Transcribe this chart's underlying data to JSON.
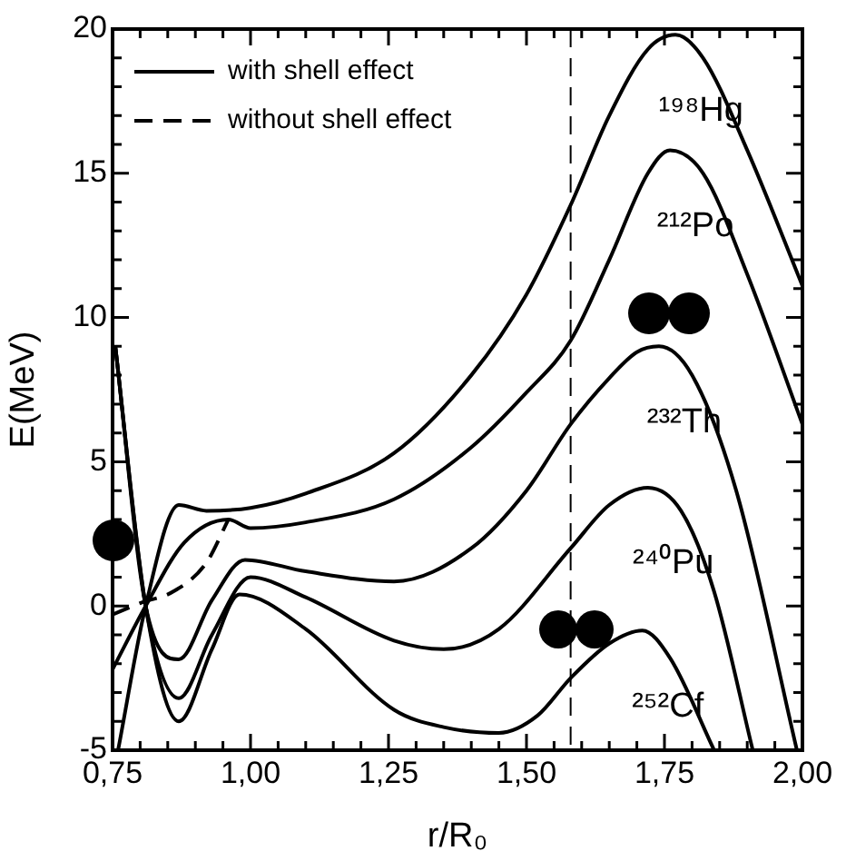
{
  "chart_data": {
    "type": "line",
    "xlabel": "r/R₀",
    "ylabel": "E(MeV)",
    "xlim": [
      0.75,
      2.0
    ],
    "xticks": [
      {
        "value": 0.75,
        "label": "0,75"
      },
      {
        "value": 0.8,
        "label": null
      },
      {
        "value": 0.85,
        "label": null
      },
      {
        "value": 0.9,
        "label": null
      },
      {
        "value": 0.95,
        "label": null
      },
      {
        "value": 1.0,
        "label": "1,00"
      },
      {
        "value": 1.05,
        "label": null
      },
      {
        "value": 1.1,
        "label": null
      },
      {
        "value": 1.15,
        "label": null
      },
      {
        "value": 1.2,
        "label": null
      },
      {
        "value": 1.25,
        "label": "1,25"
      },
      {
        "value": 1.3,
        "label": null
      },
      {
        "value": 1.35,
        "label": null
      },
      {
        "value": 1.4,
        "label": null
      },
      {
        "value": 1.45,
        "label": null
      },
      {
        "value": 1.5,
        "label": "1,50"
      },
      {
        "value": 1.55,
        "label": null
      },
      {
        "value": 1.6,
        "label": null
      },
      {
        "value": 1.65,
        "label": null
      },
      {
        "value": 1.7,
        "label": null
      },
      {
        "value": 1.75,
        "label": "1,75"
      },
      {
        "value": 1.8,
        "label": null
      },
      {
        "value": 1.85,
        "label": null
      },
      {
        "value": 1.9,
        "label": null
      },
      {
        "value": 1.95,
        "label": null
      },
      {
        "value": 2.0,
        "label": "2,00"
      }
    ],
    "ylim": [
      -5,
      20
    ],
    "yticks": [
      -5,
      {
        "value": -4,
        "label": null
      },
      {
        "value": -3,
        "label": null
      },
      {
        "value": -2,
        "label": null
      },
      {
        "value": -1,
        "label": null
      },
      0,
      {
        "value": 1,
        "label": null
      },
      {
        "value": 2,
        "label": null
      },
      {
        "value": 3,
        "label": null
      },
      {
        "value": 4,
        "label": null
      },
      5,
      {
        "value": 6,
        "label": null
      },
      {
        "value": 7,
        "label": null
      },
      {
        "value": 8,
        "label": null
      },
      {
        "value": 9,
        "label": null
      },
      10,
      {
        "value": 11,
        "label": null
      },
      {
        "value": 12,
        "label": null
      },
      {
        "value": 13,
        "label": null
      },
      {
        "value": 14,
        "label": null
      },
      15,
      {
        "value": 16,
        "label": null
      },
      {
        "value": 17,
        "label": null
      },
      {
        "value": 18,
        "label": null
      },
      {
        "value": 19,
        "label": null
      },
      20
    ],
    "grid": false,
    "legend": "top left",
    "marker": "none",
    "series": [
      {
        "name": "with shell effect",
        "color": "#000000",
        "line_style": "solid",
        "x": [
          0.76,
          0.81,
          0.87,
          0.92,
          1.0,
          1.1,
          1.26,
          1.4,
          1.5,
          1.58,
          1.65,
          1.72,
          1.77,
          1.82,
          1.9,
          2.0
        ],
        "values": [
          -5,
          0,
          3.5,
          3.3,
          3.4,
          3.9,
          5.3,
          8.0,
          10.8,
          13.9,
          17.0,
          19.3,
          19.8,
          19.0,
          15.8,
          11.1
        ]
      },
      {
        "color": "#000000",
        "line_style": "solid",
        "x": [
          0.75,
          0.81,
          0.88,
          0.96,
          1.0,
          1.1,
          1.26,
          1.4,
          1.5,
          1.58,
          1.65,
          1.72,
          1.76,
          1.82,
          1.9,
          2.0
        ],
        "values": [
          -2.2,
          0,
          2.2,
          3.0,
          2.7,
          2.9,
          3.7,
          5.5,
          7.4,
          9.2,
          12.0,
          15.0,
          15.8,
          15.0,
          11.5,
          6.3
        ]
      },
      {
        "color": "#000000",
        "line_style": "solid",
        "x": [
          0.755,
          0.81,
          0.87,
          0.93,
          0.99,
          1.1,
          1.26,
          1.4,
          1.5,
          1.58,
          1.65,
          1.7,
          1.74,
          1.8,
          1.88,
          1.99
        ],
        "values": [
          9.0,
          0,
          -1.85,
          0.2,
          1.6,
          1.2,
          0.85,
          2.0,
          4.0,
          6.3,
          7.9,
          8.8,
          9.0,
          8.0,
          4.0,
          -5
        ]
      },
      {
        "color": "#000000",
        "line_style": "solid",
        "x": [
          0.755,
          0.81,
          0.87,
          0.93,
          1.0,
          1.1,
          1.26,
          1.35,
          1.45,
          1.58,
          1.65,
          1.72,
          1.78,
          1.84,
          1.91
        ],
        "values": [
          9.0,
          0,
          -3.2,
          -1.0,
          1.0,
          0.3,
          -1.2,
          -1.5,
          -0.8,
          2.0,
          3.5,
          4.1,
          3.3,
          0.5,
          -5
        ]
      },
      {
        "color": "#000000",
        "line_style": "solid",
        "x": [
          0.755,
          0.81,
          0.87,
          0.93,
          0.98,
          1.1,
          1.26,
          1.35,
          1.45,
          1.52,
          1.58,
          1.65,
          1.71,
          1.76,
          1.84
        ],
        "values": [
          9.0,
          0,
          -4.0,
          -1.5,
          0.4,
          -0.8,
          -3.6,
          -4.2,
          -4.4,
          -3.8,
          -2.5,
          -1.3,
          -0.85,
          -1.8,
          -5
        ]
      },
      {
        "name": "without shell effect",
        "color": "#000000",
        "line_style": "dashed",
        "x": [
          0.75,
          0.8,
          0.86,
          0.92,
          0.96
        ],
        "values": [
          -0.3,
          0.1,
          0.5,
          1.5,
          3.0
        ]
      }
    ],
    "ref_lines": [
      {
        "axis": "x",
        "value": 1.58,
        "line_style": "dashed",
        "color": "#000000"
      }
    ],
    "annotations": [
      {
        "text": "¹⁹⁸Hg",
        "x": 1.77,
        "y": 19.8
      },
      {
        "text": "²¹²Po",
        "x": 1.76,
        "y": 15.8
      },
      {
        "text": "²³²Th",
        "x": 1.74,
        "y": 9.0
      },
      {
        "text": "²⁴⁰Pu",
        "x": 1.72,
        "y": 4.1
      },
      {
        "text": "²⁵²Cf",
        "x": 1.71,
        "y": -0.85
      }
    ]
  }
}
